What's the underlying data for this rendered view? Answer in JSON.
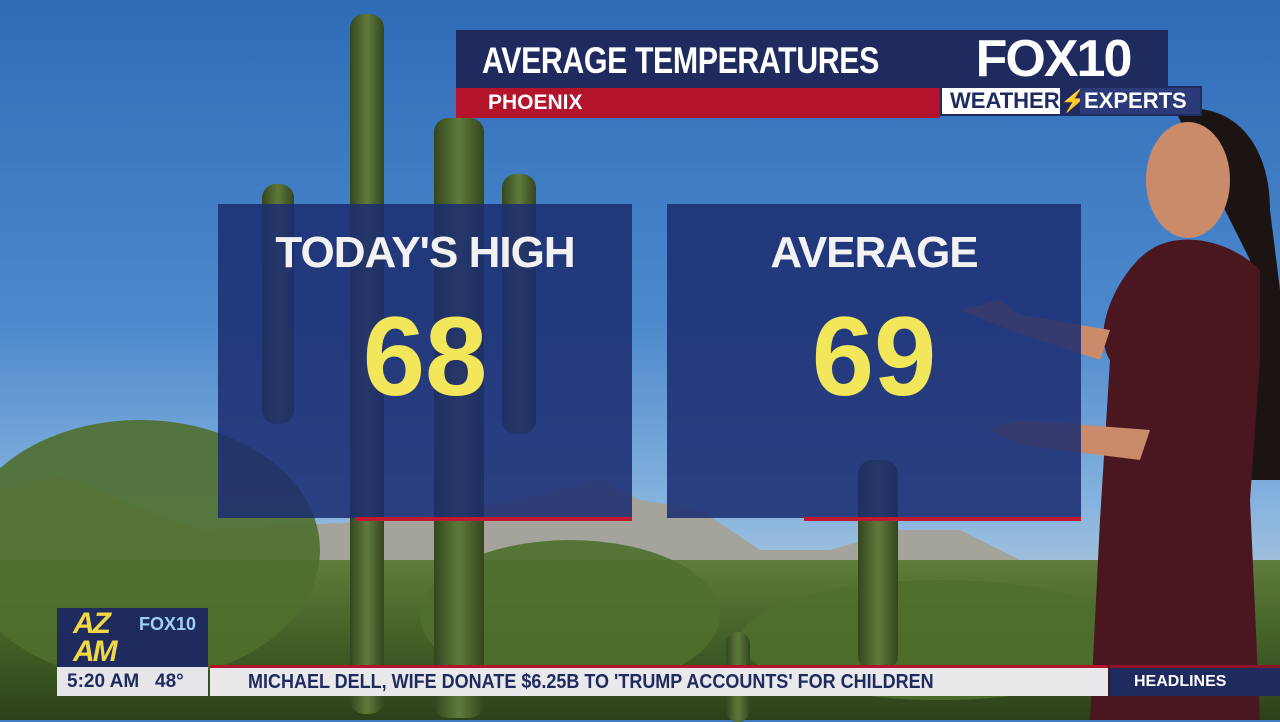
{
  "graphic": {
    "title": "AVERAGE TEMPERATURES",
    "location": "PHOENIX"
  },
  "logo": {
    "station": "FOX10",
    "tagline_left": "WEATHER",
    "tagline_right": "EXPERTS"
  },
  "panels": [
    {
      "label": "TODAY'S HIGH",
      "value": "68"
    },
    {
      "label": "AVERAGE",
      "value": "69"
    }
  ],
  "show_logo": {
    "text_main": "AZ AM",
    "text_station": "FOX10"
  },
  "status": {
    "time": "5:20 AM",
    "temperature": "48°"
  },
  "ticker": {
    "headline": "MICHAEL DELL, WIFE DONATE $6.25B TO 'TRUMP ACCOUNTS' FOR CHILDREN",
    "section": "HEADLINES"
  },
  "colors": {
    "navy": "#1f2a5e",
    "red": "#b3132b",
    "number_yellow": "#f2e75a"
  }
}
